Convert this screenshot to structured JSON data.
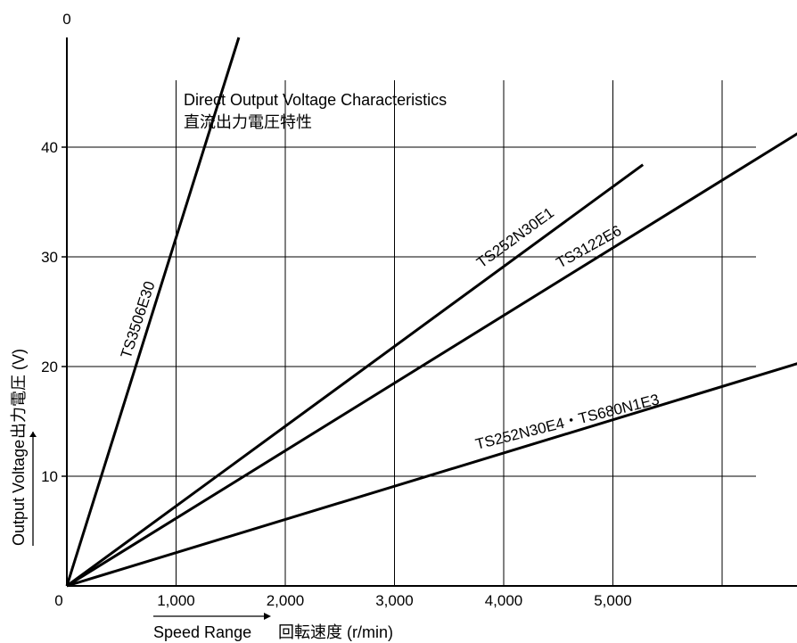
{
  "chart_data": {
    "type": "line",
    "title": "Direct Output Voltage Characteristics",
    "subtitle": "直流出力電圧特性",
    "xlabel": "Speed Range 回転速度 (r/min)",
    "ylabel": "Output Voltage 出力電圧 (V)",
    "xlim": [
      0,
      6700
    ],
    "ylim": [
      0,
      50
    ],
    "x_ticks": [
      1000,
      2000,
      3000,
      4000,
      5000
    ],
    "x_tick_labels": [
      "1,000",
      "2,000",
      "3,000",
      "4,000",
      "5,000"
    ],
    "x_grid": [
      1000,
      2000,
      3000,
      4000,
      5000,
      6000
    ],
    "y_ticks": [
      10,
      20,
      30,
      40
    ],
    "y_tick_labels": [
      "10",
      "20",
      "30",
      "40"
    ],
    "x_zero_label": "0",
    "y_zero_label": "0",
    "y_top_label": "0",
    "grid": true,
    "series": [
      {
        "name": "TS3506E30",
        "x": [
          0,
          1575
        ],
        "y": [
          0,
          50
        ]
      },
      {
        "name": "TS252N30E1",
        "x": [
          0,
          5275
        ],
        "y": [
          0,
          38.4
        ]
      },
      {
        "name": "TS3122E6",
        "x": [
          0,
          6700
        ],
        "y": [
          0,
          41.3
        ]
      },
      {
        "name": "TS252N30E4・TS680N1E3",
        "x": [
          0,
          6700
        ],
        "y": [
          0,
          20.3
        ]
      }
    ]
  },
  "labels": {
    "title": "Direct Output Voltage Characteristics",
    "subtitle": "直流出力電圧特性",
    "ylabel_en": "Output Voltage",
    "ylabel_jp": "出力電圧 (V)",
    "xlabel_en": "Speed Range",
    "xlabel_jp": "回転速度 (r/min)"
  }
}
